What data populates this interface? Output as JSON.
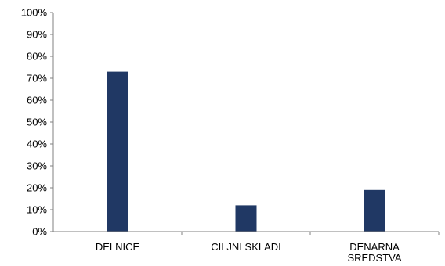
{
  "chart_data": {
    "type": "bar",
    "categories": [
      [
        "DELNICE"
      ],
      [
        "CILJNI SKLADI"
      ],
      [
        "DENARNA",
        "SREDSTVA"
      ]
    ],
    "values": [
      73,
      12,
      19
    ],
    "ylim": [
      0,
      100
    ],
    "yticks": [
      "0%",
      "10%",
      "20%",
      "30%",
      "40%",
      "50%",
      "60%",
      "70%",
      "80%",
      "90%",
      "100%"
    ],
    "ytick_values": [
      0,
      10,
      20,
      30,
      40,
      50,
      60,
      70,
      80,
      90,
      100
    ],
    "title": "",
    "xlabel": "",
    "ylabel": "",
    "grid": false,
    "legend": "none",
    "bar_color": "#203864"
  }
}
